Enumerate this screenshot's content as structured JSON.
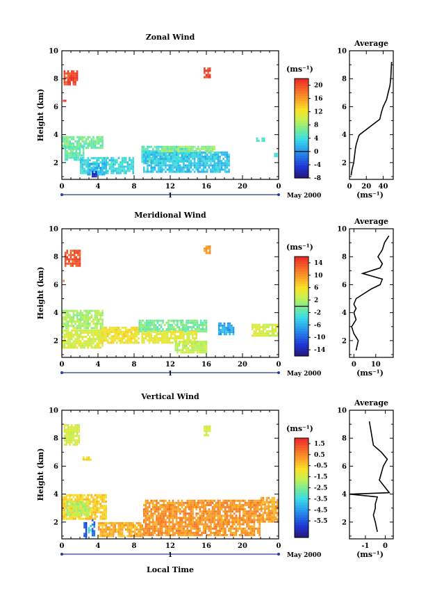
{
  "figure": {
    "date_label": "May 2000",
    "xlabel_bottom": "Local Time",
    "ylabel": "Height (km)",
    "colorbar_unit": "(ms⁻¹)",
    "profile_title": "Average",
    "profile_xlabel": "(ms⁻¹)",
    "time_ticks": [
      "0",
      "4",
      "8",
      "12",
      "16",
      "20",
      "0"
    ],
    "day_label": "1"
  },
  "chart_data": [
    {
      "type": "heatmap",
      "title": "Zonal Wind",
      "ylabel": "Height (km)",
      "xlim": [
        0,
        24
      ],
      "ylim": [
        0.8,
        10
      ],
      "xticks": [
        0,
        4,
        8,
        12,
        16,
        20,
        24
      ],
      "yticks": [
        2,
        4,
        6,
        8,
        10
      ],
      "colorbar": {
        "min": -8,
        "max": 22,
        "ticks": [
          -4,
          0,
          4,
          8,
          12,
          16,
          20,
          -8
        ],
        "contour": 0
      },
      "regions": [
        {
          "x": [
            0.2,
            1.7
          ],
          "y": [
            7.6,
            8.6
          ],
          "value": 21
        },
        {
          "x": [
            0.1,
            0.5
          ],
          "y": [
            6.3,
            6.5
          ],
          "value": 21
        },
        {
          "x": [
            15.7,
            16.5
          ],
          "y": [
            8.1,
            8.8
          ],
          "value": 21
        },
        {
          "x": [
            0,
            4.5
          ],
          "y": [
            3.0,
            3.9
          ],
          "value": 7
        },
        {
          "x": [
            0.3,
            2.5
          ],
          "y": [
            2.2,
            3.2
          ],
          "value": 6
        },
        {
          "x": [
            2,
            8
          ],
          "y": [
            1.2,
            2.4
          ],
          "value": 4
        },
        {
          "x": [
            2.8,
            5
          ],
          "y": [
            1.2,
            2.0
          ],
          "value": 2
        },
        {
          "x": [
            8.8,
            14
          ],
          "y": [
            2.0,
            3.2
          ],
          "value": 5
        },
        {
          "x": [
            9,
            18.6
          ],
          "y": [
            1.3,
            2.8
          ],
          "value": 3
        },
        {
          "x": [
            11,
            17
          ],
          "y": [
            2.8,
            3.2
          ],
          "value": 8
        },
        {
          "x": [
            3.3,
            3.9
          ],
          "y": [
            1.0,
            1.4
          ],
          "value": -4
        },
        {
          "x": [
            21.5,
            22.4
          ],
          "y": [
            3.6,
            3.8
          ],
          "value": 5
        },
        {
          "x": [
            23.5,
            24
          ],
          "y": [
            2.5,
            2.7
          ],
          "value": 4
        }
      ],
      "profile": {
        "xlim": [
          0,
          52
        ],
        "xticks": [
          0,
          20,
          40
        ],
        "xtick_labels": [
          "0",
          "20",
          "40"
        ],
        "x": [
          2,
          3,
          5,
          6,
          7,
          8,
          9,
          10,
          11,
          12,
          36,
          38,
          40,
          44,
          46,
          48,
          49,
          50
        ],
        "y": [
          1.1,
          1.5,
          2.0,
          2.5,
          3.0,
          3.3,
          3.5,
          3.7,
          3.9,
          4.0,
          5.1,
          5.6,
          6.0,
          6.5,
          7.0,
          7.5,
          8.0,
          9.2
        ]
      }
    },
    {
      "type": "heatmap",
      "title": "Meridional Wind",
      "ylabel": "Height (km)",
      "xlim": [
        0,
        24
      ],
      "ylim": [
        0.8,
        10
      ],
      "xticks": [
        0,
        4,
        8,
        12,
        16,
        20,
        24
      ],
      "yticks": [
        2,
        4,
        6,
        8,
        10
      ],
      "colorbar": {
        "min": -16,
        "max": 16,
        "ticks": [
          -14,
          -10,
          -6,
          -2,
          2,
          6,
          10,
          14
        ],
        "contour": 0
      },
      "regions": [
        {
          "x": [
            0.3,
            2.0
          ],
          "y": [
            7.3,
            8.5
          ],
          "value": 14
        },
        {
          "x": [
            15.7,
            16.5
          ],
          "y": [
            8.2,
            8.8
          ],
          "value": 10
        },
        {
          "x": [
            0.1,
            0.3
          ],
          "y": [
            6.3,
            6.5
          ],
          "value": 12
        },
        {
          "x": [
            0,
            4.5
          ],
          "y": [
            2.8,
            4.2
          ],
          "value": 2
        },
        {
          "x": [
            0,
            4.5
          ],
          "y": [
            1.5,
            2.8
          ],
          "value": 4
        },
        {
          "x": [
            4.2,
            8.5
          ],
          "y": [
            1.8,
            3.0
          ],
          "value": 6
        },
        {
          "x": [
            8.5,
            16
          ],
          "y": [
            2.6,
            3.5
          ],
          "value": 0
        },
        {
          "x": [
            8.8,
            15
          ],
          "y": [
            1.8,
            2.7
          ],
          "value": 5
        },
        {
          "x": [
            12.5,
            16
          ],
          "y": [
            1.2,
            2.0
          ],
          "value": 3
        },
        {
          "x": [
            17.3,
            19
          ],
          "y": [
            2.5,
            3.3
          ],
          "value": -6
        },
        {
          "x": [
            21,
            24
          ],
          "y": [
            2.4,
            3.2
          ],
          "value": 4
        }
      ],
      "profile": {
        "xlim": [
          -2,
          18
        ],
        "xticks": [
          0,
          10
        ],
        "xtick_labels": [
          "0",
          "10"
        ],
        "x": [
          1,
          2,
          0,
          -1,
          1,
          0,
          1,
          0,
          1,
          8,
          12,
          13,
          4,
          12,
          13,
          11,
          13,
          14,
          16
        ],
        "y": [
          1.3,
          2.0,
          2.5,
          3.0,
          3.5,
          4.0,
          4.3,
          4.6,
          5.0,
          5.7,
          6.0,
          6.4,
          6.8,
          7.2,
          7.5,
          8.0,
          8.5,
          9.0,
          9.5
        ]
      }
    },
    {
      "type": "heatmap",
      "title": "Vertical Wind",
      "ylabel": "Height (km)",
      "xlabel": "Local Time",
      "xlim": [
        0,
        24
      ],
      "ylim": [
        0.8,
        10
      ],
      "xticks": [
        0,
        4,
        8,
        12,
        16,
        20,
        24
      ],
      "yticks": [
        2,
        4,
        6,
        8,
        10
      ],
      "colorbar": {
        "min": -7,
        "max": 2,
        "ticks": [
          1.5,
          0.5,
          -0.5,
          -1.5,
          -2.5,
          -3.5,
          -4.5,
          -5.5
        ],
        "contour": null
      },
      "regions": [
        {
          "x": [
            0.2,
            2.0
          ],
          "y": [
            7.5,
            9.0
          ],
          "value": -1.3
        },
        {
          "x": [
            2.3,
            3.3
          ],
          "y": [
            6.5,
            6.7
          ],
          "value": -0.8
        },
        {
          "x": [
            15.7,
            16.5
          ],
          "y": [
            8.2,
            8.9
          ],
          "value": -1.3
        },
        {
          "x": [
            0,
            5
          ],
          "y": [
            2.2,
            4.0
          ],
          "value": -0.5
        },
        {
          "x": [
            0.5,
            3
          ],
          "y": [
            2.5,
            3.5
          ],
          "value": -1.8
        },
        {
          "x": [
            2.4,
            2.8
          ],
          "y": [
            0.9,
            2.0
          ],
          "value": -5.5
        },
        {
          "x": [
            3.3,
            3.7
          ],
          "y": [
            1.0,
            2.2
          ],
          "value": -5.0
        },
        {
          "x": [
            2.9,
            3.2
          ],
          "y": [
            1.2,
            1.8
          ],
          "value": -3.3
        },
        {
          "x": [
            4,
            9
          ],
          "y": [
            1.0,
            2.0
          ],
          "value": 0.0
        },
        {
          "x": [
            9,
            22
          ],
          "y": [
            1.0,
            3.6
          ],
          "value": 0.4
        },
        {
          "x": [
            22,
            24
          ],
          "y": [
            2.0,
            3.8
          ],
          "value": 0.2
        }
      ],
      "profile": {
        "xlim": [
          -1.8,
          0.4
        ],
        "xticks": [
          -1,
          0
        ],
        "xtick_labels": [
          "-1",
          "0"
        ],
        "x": [
          -0.4,
          -0.5,
          -0.6,
          -0.5,
          -0.5,
          -0.4,
          -1.8,
          0.2,
          -0.3,
          -0.2,
          -0.1,
          0.1,
          -0.2,
          -0.6,
          -0.8
        ],
        "y": [
          1.3,
          2.0,
          2.5,
          3.0,
          3.3,
          3.8,
          4.0,
          4.1,
          5.0,
          5.5,
          6.0,
          6.5,
          7.0,
          7.5,
          9.2
        ]
      }
    }
  ]
}
